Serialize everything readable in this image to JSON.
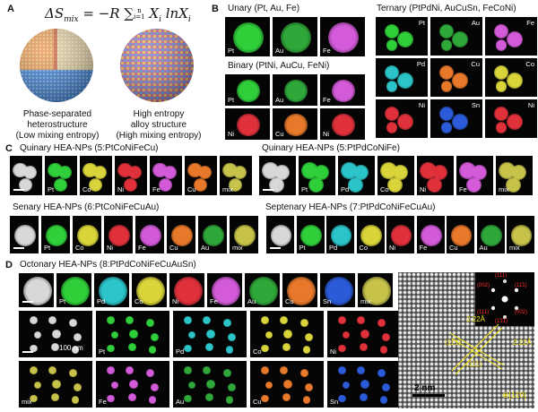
{
  "panelA": {
    "letter": "A",
    "equation": "ΔS",
    "equation_sub": "mix",
    "equation_rest": " = −R ∑",
    "equation_sum_top": "n",
    "equation_sum_bottom": "i=1",
    "equation_tail": " X",
    "equation_tail_sub": "i",
    "equation_ln": " lnX",
    "equation_ln_sub": "i",
    "left_caption": [
      "Phase-separated",
      "heterostructure",
      "(Low mixing entropy)"
    ],
    "right_caption": [
      "High entropy",
      "alloy structure",
      "(High mixing entropy)"
    ]
  },
  "panelB": {
    "letter": "B",
    "unary_title": "Unary (Pt, Au, Fe)",
    "unary": [
      "Pt",
      "Au",
      "Fe"
    ],
    "binary_title": "Binary (PtNi, AuCu, FeNi)",
    "binary": [
      "Pt",
      "Au",
      "Fe",
      "Ni",
      "Cu",
      "Ni"
    ],
    "ternary_title": "Ternary (PtPdNi, AuCuSn, FeCoNi)",
    "ternary": [
      "Pt",
      "Au",
      "Fe",
      "Pd",
      "Cu",
      "Co",
      "Ni",
      "Sn",
      "Ni"
    ]
  },
  "panelC": {
    "letter": "C",
    "quinary1_title": "Quinary HEA-NPs (5:PtCoNiFeCu)",
    "quinary1": [
      "",
      "Pt",
      "Co",
      "Ni",
      "Fe",
      "Cu",
      "mix"
    ],
    "quinary2_title": "Quinary HEA-NPs (5:PtPdCoNiFe)",
    "quinary2": [
      "",
      "Pt",
      "Pd",
      "Co",
      "Ni",
      "Fe",
      "mix"
    ],
    "senary_title": "Senary HEA-NPs (6:PtCoNiFeCuAu)",
    "senary": [
      "",
      "Pt",
      "Co",
      "Ni",
      "Fe",
      "Cu",
      "Au",
      "mix"
    ],
    "septenary_title": "Septenary HEA-NPs (7:PtPdCoNiFeCuAu)",
    "septenary": [
      "",
      "Pt",
      "Pd",
      "Co",
      "Ni",
      "Fe",
      "Cu",
      "Au",
      "mix"
    ]
  },
  "panelD": {
    "letter": "D",
    "title": "Octonary HEA-NPs (8:PtPdCoNiFeCuAuSn)",
    "top_row": [
      "",
      "Pt",
      "Pd",
      "Co",
      "Ni",
      "Fe",
      "Au",
      "Cu",
      "Sn",
      "mix"
    ],
    "grid_row1": [
      "",
      "Pt",
      "Pd",
      "Co",
      "Ni"
    ],
    "grid_row2": [
      "mix",
      "Fe",
      "Au",
      "Cu",
      "Sn"
    ],
    "scale_100nm": "100 nm",
    "hrtem_scale": "2 nm",
    "d_spacing_1": "2.22Å",
    "d_spacing_2": "2.22Å",
    "plane_1": "(11̄1)",
    "plane_2": "(111)",
    "zone_axis": "⊗[11̄0]",
    "fft_labels": [
      "(002)",
      "(111)",
      "(11̄1)",
      "(111)",
      "(1̄1̄1̄)",
      "(002)"
    ]
  },
  "colors": {
    "Pt": "#2fcf3a",
    "Au": "#2fa83a",
    "Fe": "#d35ad8",
    "Ni": "#e0303a",
    "Cu": "#e8782a",
    "Pd": "#2bc4c8",
    "Co": "#d8d43a",
    "Sn": "#2b5bd8",
    "mix": "#c6c24a",
    "haadf": "#d8d8d8",
    "accent_yellow": "#f2e51c",
    "fft_red": "#ff3030"
  }
}
